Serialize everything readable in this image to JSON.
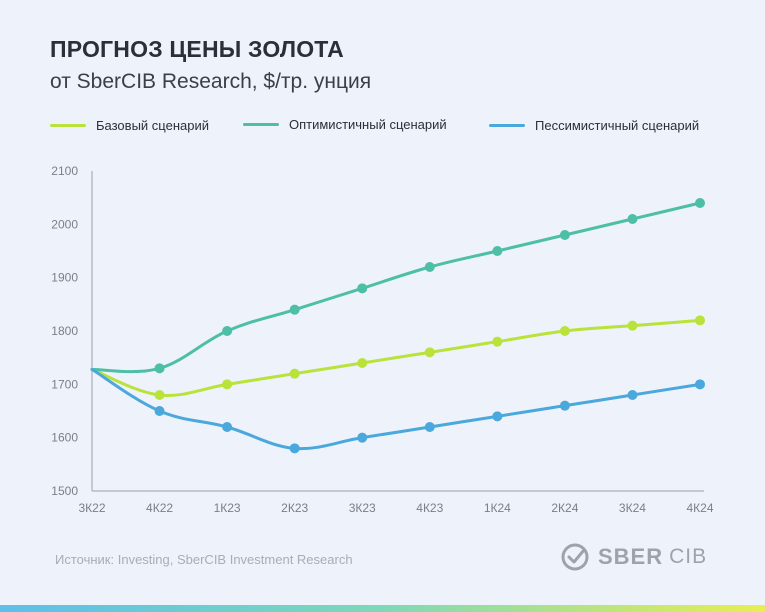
{
  "header": {
    "title": "ПРОГНОЗ ЦЕНЫ ЗОЛОТА",
    "subtitle": "от SberCIB  Research, $/тр. унция"
  },
  "colors": {
    "base": "#b9e33a",
    "optimistic": "#4cbfa6",
    "pessimistic": "#4aa8dc",
    "axis": "#9aa0aa"
  },
  "chart_data": {
    "type": "line",
    "title": "ПРОГНОЗ ЦЕНЫ ЗОЛОТА",
    "subtitle": "от SberCIB  Research, $/тр. унция",
    "xlabel": "",
    "ylabel": "",
    "ylim": [
      1500,
      2100
    ],
    "yticks": [
      1500,
      1600,
      1700,
      1800,
      1900,
      2000,
      2100
    ],
    "categories": [
      "3К22",
      "4К22",
      "1К23",
      "2К23",
      "3К23",
      "4К23",
      "1К24",
      "2К24",
      "3К24",
      "4К24"
    ],
    "grid": false,
    "legend": "top",
    "series": [
      {
        "name": "Базовый сценарий",
        "key": "base",
        "values": [
          1728,
          1680,
          1700,
          1720,
          1740,
          1760,
          1780,
          1800,
          1810,
          1820
        ]
      },
      {
        "name": "Оптимистичный сценарий",
        "key": "optimistic",
        "values": [
          1728,
          1730,
          1800,
          1840,
          1880,
          1920,
          1950,
          1980,
          2010,
          2040
        ]
      },
      {
        "name": "Пессимистичный сценарий",
        "key": "pessimistic",
        "values": [
          1728,
          1650,
          1620,
          1580,
          1600,
          1620,
          1640,
          1660,
          1680,
          1700
        ]
      }
    ]
  },
  "footer": {
    "source": "Источник: Investing, SberCIB Investment Research",
    "brand": "SBER",
    "brand_sub": "CIB"
  }
}
